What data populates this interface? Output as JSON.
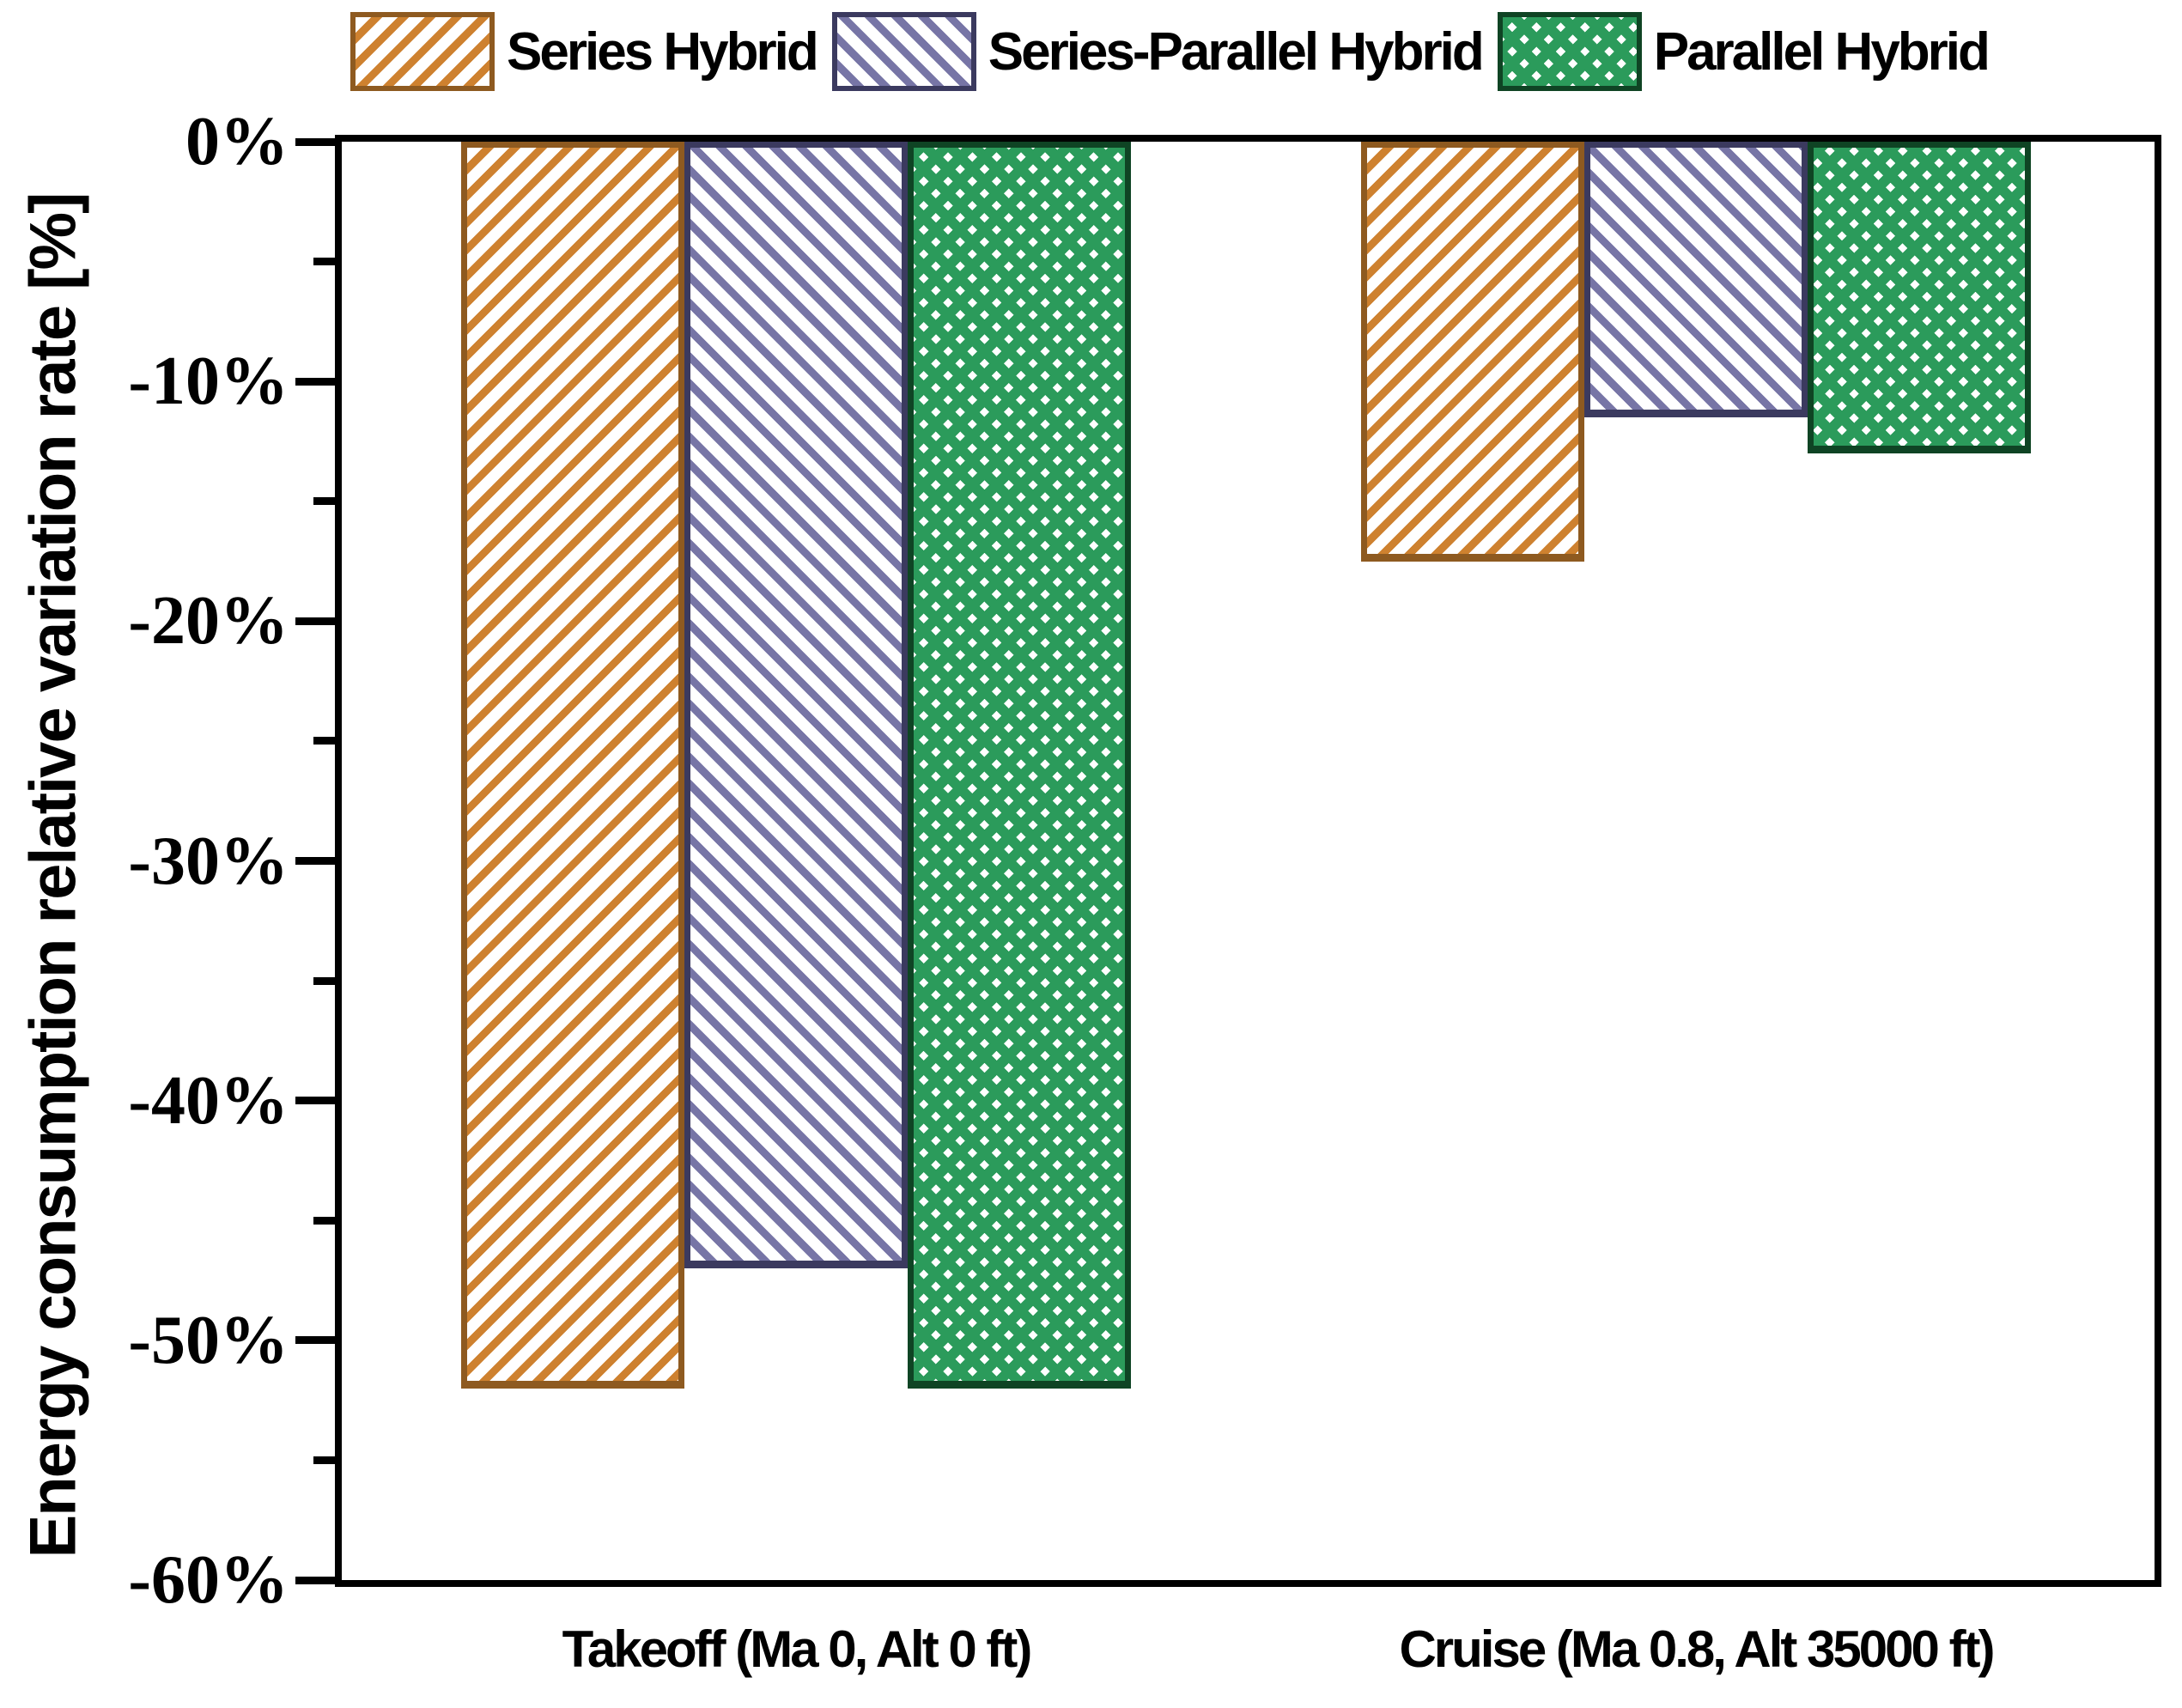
{
  "chart_data": {
    "type": "bar",
    "title": "",
    "ylabel": "Energy consumption relative variation rate [%]",
    "xlabel": "",
    "categories": [
      "Takeoff (Ma 0, Alt 0 ft)",
      "Cruise (Ma 0.8, Alt 35000 ft)"
    ],
    "series": [
      {
        "name": "Series Hybrid",
        "values": [
          -52,
          -17.5
        ],
        "fill_color": "#CE812F",
        "edge_color": "#8E5A20",
        "hatch": "/"
      },
      {
        "name": "Series-Parallel Hybrid",
        "values": [
          -47,
          -11.5
        ],
        "fill_color": "#7775A6",
        "edge_color": "#3B3A5F",
        "hatch": "\\"
      },
      {
        "name": "Parallel Hybrid",
        "values": [
          -52,
          -13
        ],
        "fill_color": "#2B9B5B",
        "edge_color": "#0F4424",
        "hatch": "x"
      }
    ],
    "ylim": [
      -60,
      0
    ],
    "yticks": [
      "0%",
      "-10%",
      "-20%",
      "-30%",
      "-40%",
      "-50%",
      "-60%"
    ],
    "ytick_values": [
      0,
      -10,
      -20,
      -30,
      -40,
      -50,
      -60
    ],
    "minor_tick_values": [
      -5,
      -15,
      -25,
      -35,
      -45,
      -55
    ],
    "grid": false,
    "legend_position": "top",
    "axis_color": "#000000"
  }
}
